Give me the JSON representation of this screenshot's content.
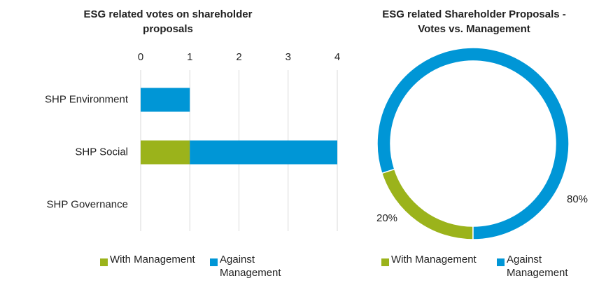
{
  "chart_data": [
    {
      "type": "stacked-bar-horizontal",
      "title": "ESG related votes on shareholder proposals",
      "categories": [
        "SHP Environment",
        "SHP Social",
        "SHP Governance"
      ],
      "series": [
        {
          "name": "With Management",
          "color": "#9bb31b",
          "values": [
            0,
            1,
            0
          ]
        },
        {
          "name": "Against Management",
          "color": "#0096d6",
          "values": [
            1,
            3,
            0
          ]
        }
      ],
      "xlim": [
        0,
        4
      ],
      "xticks": [
        0,
        1,
        2,
        3,
        4
      ],
      "grid": true,
      "legend": "bottom"
    },
    {
      "type": "donut",
      "title": "ESG related Shareholder Proposals - Votes vs. Management",
      "categories": [
        "With Management",
        "Against Management"
      ],
      "values": [
        20,
        80
      ],
      "value_labels": [
        "20%",
        "80%"
      ],
      "colors": [
        "#9bb31b",
        "#0096d6"
      ],
      "legend": "bottom"
    }
  ]
}
